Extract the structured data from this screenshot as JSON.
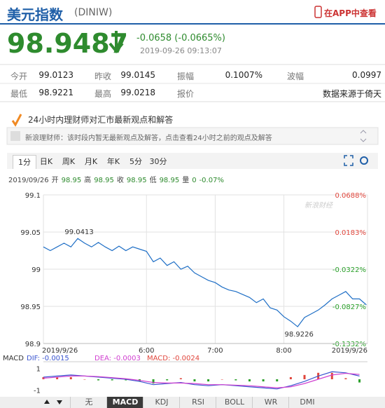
{
  "header": {
    "title": "美元指数",
    "code": "(DINIW)",
    "app_link": "在APP中查看"
  },
  "quote": {
    "price": "98.9487",
    "change": "-0.0658 (-0.0665%)",
    "time": "2019-09-26 09:13:07"
  },
  "stats": {
    "rows": [
      [
        {
          "label": "今开",
          "value": "99.0123"
        },
        {
          "label": "昨收",
          "value": "99.0145"
        },
        {
          "label": "振幅",
          "value": "0.1007%"
        },
        {
          "label": "波幅",
          "value": "0.0997"
        }
      ],
      [
        {
          "label": "最低",
          "value": "98.9221"
        },
        {
          "label": "最高",
          "value": "99.0218"
        },
        {
          "label": "报价"
        },
        {
          "value": "数据来源于倚天"
        }
      ]
    ]
  },
  "advisor": {
    "banner": "24小时内理财师对汇市最新观点和解答",
    "notice": "新浪理财师：该时段内暂无最新观点及解答，点击查看24小时之前的观点及解答"
  },
  "period_tabs": {
    "items": [
      "1分",
      "日K",
      "周K",
      "月K",
      "年K",
      "5分",
      "30分"
    ],
    "active": 0
  },
  "quote_bar": {
    "date": "2019/09/26",
    "items": [
      {
        "label": "开",
        "value": "98.95"
      },
      {
        "label": "高",
        "value": "98.95"
      },
      {
        "label": "收",
        "value": "98.95"
      },
      {
        "label": "低",
        "value": "98.95"
      },
      {
        "label": "量",
        "value": "0"
      }
    ],
    "change": "-0.07%"
  },
  "chart": {
    "type": "line",
    "color": "#1f6fc6",
    "watermark": "新浪财经",
    "x": [
      270,
      276,
      282,
      288,
      294,
      300,
      306,
      312,
      318,
      324,
      330,
      336,
      342,
      348,
      354,
      360,
      366,
      372,
      378,
      384,
      390,
      396,
      402,
      408,
      414,
      420,
      426,
      432,
      438,
      444,
      450,
      456,
      462,
      468,
      474,
      480,
      486,
      492,
      498,
      504,
      510,
      516,
      522,
      528,
      534,
      540,
      546,
      552
    ],
    "values": [
      99.03,
      99.025,
      99.03,
      99.035,
      99.03,
      99.0413,
      99.035,
      99.03,
      99.036,
      99.03,
      99.025,
      99.031,
      99.025,
      99.03,
      99.027,
      99.024,
      99.01,
      99.015,
      99.005,
      99.01,
      99.0,
      99.004,
      98.995,
      98.99,
      98.985,
      98.982,
      98.976,
      98.972,
      98.97,
      98.966,
      98.962,
      98.955,
      98.96,
      98.948,
      98.945,
      98.936,
      98.93,
      98.9226,
      98.935,
      98.94,
      98.945,
      98.952,
      98.96,
      98.965,
      98.97,
      98.96,
      98.96,
      98.952
    ],
    "xlim": [
      270,
      553
    ],
    "xticks": [
      {
        "value": 270,
        "label": "2019/9/26"
      },
      {
        "value": 360,
        "label": "6:00"
      },
      {
        "value": 420,
        "label": "7:00"
      },
      {
        "value": 480,
        "label": "8:00"
      },
      {
        "value": 553,
        "label": "2019/9/26"
      }
    ],
    "ylim": [
      98.9,
      99.1
    ],
    "yticks": [
      99.1,
      99.05,
      99,
      98.95,
      98.9
    ],
    "y2lim": [
      -0.1332,
      0.0688
    ],
    "y2ticks": [
      {
        "value": 0.0688,
        "label": "0.0688%"
      },
      {
        "value": 0.0183,
        "label": "0.0183%"
      },
      {
        "value": -0.0322,
        "label": "-0.0322%"
      },
      {
        "value": -0.0827,
        "label": "-0.0827%"
      },
      {
        "value": -0.1332,
        "label": "-0.1332%"
      }
    ],
    "grid": true,
    "annotations": [
      {
        "label": "99.0413",
        "x": 300,
        "y": 99.0413
      },
      {
        "label": "98.9226",
        "x": 492,
        "y": 98.9226
      }
    ]
  },
  "macd": {
    "type": "macd",
    "title": "MACD",
    "x": [
      270,
      282,
      294,
      306,
      318,
      330,
      342,
      354,
      366,
      378,
      390,
      402,
      414,
      426,
      438,
      450,
      462,
      474,
      486,
      498,
      510,
      522,
      534,
      546
    ],
    "xlim": [
      270,
      553
    ],
    "series": [
      {
        "label": "DIF: -0.0015",
        "color": "#3a55d0",
        "values": [
          0.2,
          0.3,
          0.4,
          0.3,
          0.2,
          0.1,
          0.0,
          -0.2,
          -0.5,
          -0.4,
          -0.3,
          -0.5,
          -0.6,
          -0.5,
          -0.6,
          -0.7,
          -0.8,
          -0.9,
          -0.6,
          -0.2,
          0.3,
          0.7,
          0.6,
          0.3
        ]
      },
      {
        "label": "DEA: -0.0003",
        "color": "#d040d0",
        "values": [
          0.1,
          0.2,
          0.3,
          0.3,
          0.25,
          0.15,
          0.05,
          -0.1,
          -0.3,
          -0.35,
          -0.35,
          -0.4,
          -0.5,
          -0.5,
          -0.55,
          -0.6,
          -0.7,
          -0.8,
          -0.7,
          -0.4,
          0.0,
          0.4,
          0.55,
          0.45
        ]
      }
    ],
    "histogram": {
      "label": "MACD: -0.0024",
      "up_color": "#e0463c",
      "down_color": "#2aa02a",
      "values": [
        0.2,
        0.2,
        0.2,
        0,
        -0.1,
        -0.1,
        -0.1,
        -0.2,
        -0.4,
        -0.1,
        0.1,
        -0.2,
        -0.2,
        0,
        -0.1,
        -0.2,
        -0.2,
        -0.2,
        0.2,
        0.4,
        0.6,
        0.6,
        0.1,
        -0.3
      ]
    },
    "ylim": [
      -1.5,
      1.5
    ],
    "yticks": [
      1,
      -1
    ]
  },
  "indicator_tabs": {
    "items": [
      "无",
      "MACD",
      "KDJ",
      "RSI",
      "BOLL",
      "WR",
      "DMI"
    ],
    "active": 1
  }
}
